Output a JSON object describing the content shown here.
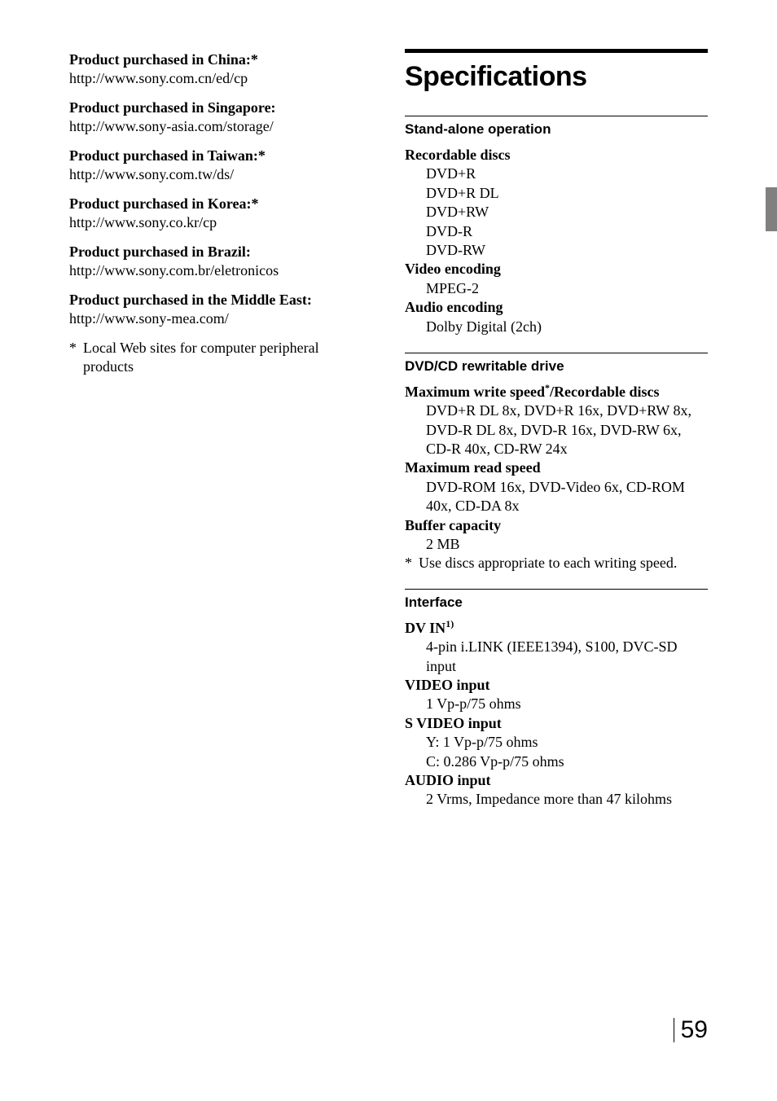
{
  "left": {
    "regions": [
      {
        "title": "Product purchased in China:*",
        "url": "http://www.sony.com.cn/ed/cp"
      },
      {
        "title": "Product purchased in Singapore:",
        "url": "http://www.sony-asia.com/storage/"
      },
      {
        "title": "Product purchased in Taiwan:*",
        "url": "http://www.sony.com.tw/ds/"
      },
      {
        "title": "Product purchased in Korea:*",
        "url": "http://www.sony.co.kr/cp"
      },
      {
        "title": "Product purchased in Brazil:",
        "url": "http://www.sony.com.br/eletronicos"
      },
      {
        "title": "Product purchased in the Middle East:",
        "url": "http://www.sony-mea.com/"
      }
    ],
    "footnote_marker": "*",
    "footnote_text": "Local Web sites for computer peripheral products"
  },
  "right": {
    "title": "Specifications",
    "sections": [
      {
        "heading": "Stand-alone operation",
        "items": [
          {
            "label": "Recordable discs",
            "lines": [
              "DVD+R",
              "DVD+R DL",
              "DVD+RW",
              "DVD-R",
              "DVD-RW"
            ]
          },
          {
            "label": "Video encoding",
            "lines": [
              "MPEG-2"
            ]
          },
          {
            "label": "Audio encoding",
            "lines": [
              "Dolby Digital (2ch)"
            ]
          }
        ],
        "footnote": null
      },
      {
        "heading": "DVD/CD rewritable drive",
        "items": [
          {
            "label_pre": "Maximum write speed",
            "label_sup": "*",
            "label_post": "/Recordable discs",
            "lines": [
              "DVD+R DL 8x, DVD+R 16x, DVD+RW 8x, DVD-R DL 8x, DVD-R 16x, DVD-RW 6x, CD-R 40x, CD-RW 24x"
            ]
          },
          {
            "label": "Maximum read speed",
            "lines": [
              "DVD-ROM 16x, DVD-Video 6x, CD-ROM 40x, CD-DA 8x"
            ]
          },
          {
            "label": "Buffer capacity",
            "lines": [
              "2 MB"
            ]
          }
        ],
        "footnote": {
          "marker": "*",
          "text": "Use discs appropriate to each writing speed."
        }
      },
      {
        "heading": "Interface",
        "items": [
          {
            "label_pre": "DV IN",
            "label_sup": "1)",
            "label_post": "",
            "lines": [
              "4-pin i.LINK (IEEE1394), S100, DVC-SD input"
            ]
          },
          {
            "label": "VIDEO input",
            "lines": [
              "1 Vp-p/75 ohms"
            ]
          },
          {
            "label": "S VIDEO input",
            "lines": [
              "Y: 1 Vp-p/75 ohms",
              "C: 0.286 Vp-p/75 ohms"
            ]
          },
          {
            "label": "AUDIO input",
            "lines": [
              "2 Vrms, Impedance more than 47 kilohms"
            ]
          }
        ],
        "footnote": null
      }
    ]
  },
  "page_number": "59",
  "colors": {
    "text": "#000000",
    "background": "#ffffff",
    "tab": "#808080",
    "rule": "#000000"
  }
}
